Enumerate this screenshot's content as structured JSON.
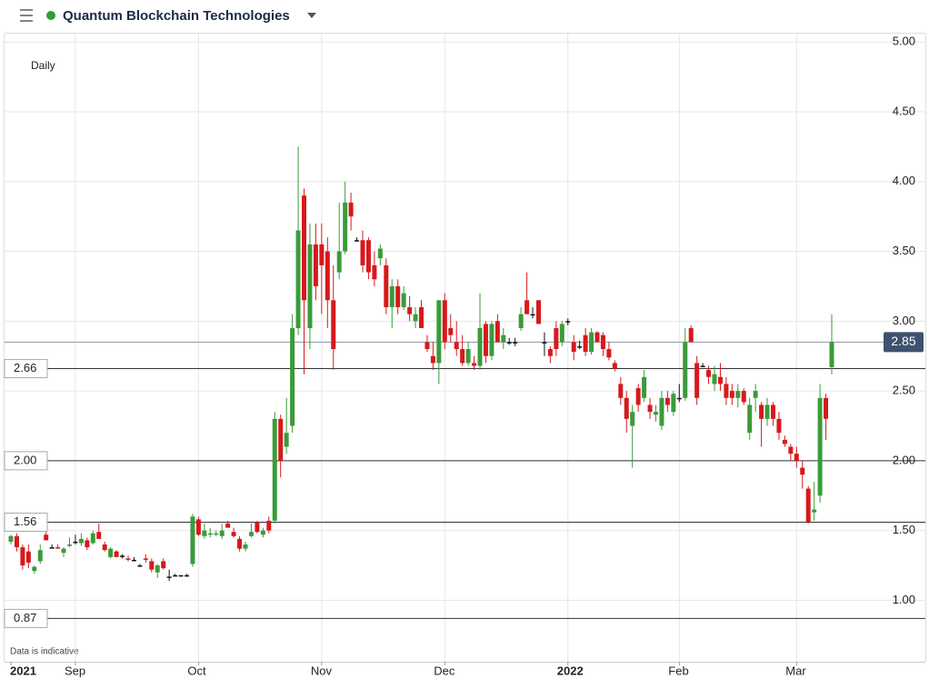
{
  "chart_data": {
    "type": "candlestick",
    "title": "Quantum Blockchain Technologies",
    "interval": "Daily",
    "footnote": "Data is indicative",
    "up_color": "#3a9b3a",
    "down_color": "#d7191c",
    "flat_color": "#111111",
    "categories": [
      "2021",
      null,
      null,
      null,
      null,
      null,
      null,
      null,
      null,
      null,
      null,
      "Sep",
      null,
      null,
      null,
      null,
      null,
      null,
      null,
      null,
      null,
      null,
      null,
      null,
      null,
      null,
      null,
      null,
      null,
      null,
      null,
      null,
      "Oct",
      null,
      null,
      null,
      null,
      null,
      null,
      null,
      null,
      null,
      null,
      null,
      null,
      null,
      null,
      null,
      null,
      null,
      null,
      null,
      null,
      "Nov",
      null,
      null,
      null,
      null,
      null,
      null,
      null,
      null,
      null,
      null,
      null,
      null,
      null,
      null,
      null,
      null,
      null,
      null,
      null,
      null,
      "Dec",
      null,
      null,
      null,
      null,
      null,
      null,
      null,
      null,
      null,
      null,
      null,
      null,
      null,
      null,
      null,
      null,
      null,
      null,
      null,
      null,
      "2022",
      null,
      null,
      null,
      null,
      null,
      null,
      null,
      null,
      null,
      null,
      null,
      null,
      null,
      null,
      null,
      null,
      null,
      null,
      "Feb",
      null,
      null,
      null,
      null,
      null,
      null,
      null,
      null,
      null,
      null,
      null,
      null,
      null,
      null,
      null,
      null,
      null,
      null,
      null,
      "Mar",
      null,
      null,
      null,
      null,
      null,
      null
    ],
    "open": [
      1.42,
      1.46,
      1.38,
      1.35,
      1.21,
      1.28,
      1.47,
      1.38,
      1.38,
      1.34,
      1.39,
      1.42,
      1.41,
      1.43,
      1.41,
      1.49,
      1.4,
      1.31,
      1.35,
      1.32,
      1.3,
      1.29,
      1.25,
      1.3,
      1.28,
      1.2,
      1.28,
      1.17,
      1.18,
      1.18,
      1.18,
      1.26,
      1.58,
      1.46,
      1.47,
      1.47,
      1.46,
      1.55,
      1.49,
      1.44,
      1.37,
      1.46,
      1.56,
      1.47,
      1.57,
      1.57,
      2.3,
      2.1,
      2.25,
      2.95,
      3.9,
      2.95,
      3.55,
      3.55,
      3.5,
      3.15,
      3.35,
      3.5,
      3.85,
      3.58,
      3.58,
      3.58,
      3.4,
      3.45,
      3.4,
      3.1,
      3.25,
      3.1,
      3.1,
      3.0,
      3.1,
      2.85,
      2.75,
      2.7,
      3.15,
      2.95,
      2.85,
      2.8,
      2.7,
      2.7,
      2.68,
      2.98,
      2.75,
      3.0,
      2.85,
      2.85,
      2.85,
      2.95,
      3.15,
      3.05,
      3.15,
      2.85,
      2.8,
      2.95,
      2.85,
      3.0,
      2.85,
      2.82,
      2.9,
      2.78,
      2.92,
      2.9,
      2.8,
      2.7,
      2.55,
      2.45,
      2.25,
      2.52,
      2.45,
      2.4,
      2.33,
      2.25,
      2.45,
      2.35,
      2.45,
      2.45,
      2.95,
      2.7,
      2.68,
      2.65,
      2.55,
      2.6,
      2.55,
      2.5,
      2.45,
      2.5,
      2.2,
      2.45,
      2.4,
      2.3,
      2.4,
      2.3,
      2.15,
      2.1,
      2.05,
      1.95,
      1.8,
      1.63,
      1.75,
      2.45,
      2.67
    ],
    "high": [
      1.47,
      1.48,
      1.4,
      1.4,
      1.25,
      1.4,
      1.49,
      1.4,
      1.4,
      1.38,
      1.45,
      1.47,
      1.48,
      1.45,
      1.5,
      1.55,
      1.42,
      1.38,
      1.36,
      1.33,
      1.32,
      1.31,
      1.26,
      1.33,
      1.3,
      1.26,
      1.3,
      1.22,
      1.19,
      1.18,
      1.19,
      1.62,
      1.6,
      1.55,
      1.52,
      1.5,
      1.55,
      1.57,
      1.52,
      1.46,
      1.42,
      1.55,
      1.57,
      1.52,
      1.6,
      2.35,
      2.33,
      2.45,
      3.05,
      4.25,
      3.95,
      3.7,
      3.7,
      3.7,
      3.6,
      3.4,
      3.85,
      4.0,
      3.92,
      3.6,
      3.65,
      3.6,
      3.5,
      3.55,
      3.45,
      3.3,
      3.3,
      3.25,
      3.18,
      3.1,
      3.15,
      2.9,
      2.85,
      3.15,
      3.2,
      3.05,
      3.0,
      2.9,
      2.85,
      2.75,
      3.2,
      3.0,
      3.0,
      3.05,
      2.95,
      2.88,
      2.88,
      3.1,
      3.35,
      3.1,
      3.15,
      2.92,
      2.82,
      3.0,
      3.0,
      3.02,
      2.9,
      2.86,
      2.95,
      2.95,
      2.93,
      2.92,
      2.85,
      2.72,
      2.6,
      2.5,
      2.4,
      2.55,
      2.65,
      2.45,
      2.4,
      2.5,
      2.5,
      2.5,
      2.55,
      2.95,
      2.97,
      2.75,
      2.7,
      2.68,
      2.68,
      2.7,
      2.6,
      2.55,
      2.55,
      2.52,
      2.45,
      2.55,
      2.42,
      2.45,
      2.42,
      2.35,
      2.18,
      2.12,
      2.1,
      2.0,
      1.82,
      1.85,
      2.55,
      2.48,
      3.05
    ],
    "low": [
      1.4,
      1.35,
      1.22,
      1.23,
      1.19,
      1.26,
      1.43,
      1.37,
      1.37,
      1.31,
      1.38,
      1.4,
      1.39,
      1.36,
      1.4,
      1.44,
      1.35,
      1.3,
      1.31,
      1.3,
      1.28,
      1.28,
      1.24,
      1.27,
      1.2,
      1.16,
      1.22,
      1.14,
      1.17,
      1.17,
      1.17,
      1.24,
      1.46,
      1.44,
      1.45,
      1.46,
      1.44,
      1.52,
      1.45,
      1.35,
      1.35,
      1.45,
      1.48,
      1.45,
      1.48,
      1.55,
      1.88,
      2.05,
      2.2,
      2.9,
      2.62,
      2.8,
      3.15,
      3.05,
      2.95,
      2.65,
      3.3,
      3.48,
      3.65,
      3.57,
      3.35,
      3.3,
      3.25,
      3.4,
      3.05,
      2.95,
      3.05,
      3.08,
      3.0,
      2.95,
      2.95,
      2.78,
      2.65,
      2.55,
      2.8,
      2.85,
      2.75,
      2.68,
      2.68,
      2.65,
      2.65,
      2.7,
      2.72,
      2.85,
      2.8,
      2.83,
      2.82,
      2.93,
      3.05,
      3.02,
      2.98,
      2.75,
      2.7,
      2.75,
      2.82,
      2.97,
      2.72,
      2.8,
      2.75,
      2.76,
      2.85,
      2.75,
      2.72,
      2.64,
      2.4,
      2.2,
      1.95,
      2.35,
      2.42,
      2.3,
      2.28,
      2.22,
      2.35,
      2.32,
      2.42,
      2.43,
      2.85,
      2.4,
      2.67,
      2.55,
      2.5,
      2.5,
      2.4,
      2.4,
      2.38,
      2.4,
      2.15,
      2.35,
      2.1,
      2.25,
      2.25,
      2.15,
      2.1,
      2.0,
      1.95,
      1.8,
      1.55,
      1.57,
      1.7,
      2.15,
      2.62
    ],
    "close": [
      1.46,
      1.38,
      1.25,
      1.27,
      1.24,
      1.36,
      1.43,
      1.38,
      1.37,
      1.37,
      1.4,
      1.42,
      1.44,
      1.38,
      1.48,
      1.44,
      1.36,
      1.37,
      1.31,
      1.32,
      1.29,
      1.29,
      1.25,
      1.29,
      1.22,
      1.25,
      1.23,
      1.17,
      1.18,
      1.18,
      1.18,
      1.6,
      1.47,
      1.5,
      1.48,
      1.48,
      1.5,
      1.52,
      1.46,
      1.37,
      1.4,
      1.49,
      1.49,
      1.5,
      1.5,
      2.3,
      2.0,
      2.2,
      2.95,
      3.65,
      3.15,
      3.55,
      3.25,
      3.4,
      3.15,
      2.8,
      3.5,
      3.85,
      3.75,
      3.58,
      3.4,
      3.35,
      3.3,
      3.52,
      3.1,
      3.25,
      3.1,
      3.2,
      3.05,
      3.05,
      2.95,
      2.8,
      2.7,
      3.15,
      2.85,
      2.9,
      2.8,
      2.7,
      2.8,
      2.68,
      2.95,
      2.75,
      2.98,
      2.85,
      2.9,
      2.85,
      2.85,
      3.05,
      3.05,
      3.05,
      2.98,
      2.85,
      2.75,
      2.8,
      2.98,
      3.0,
      2.78,
      2.82,
      2.78,
      2.92,
      2.85,
      2.8,
      2.74,
      2.66,
      2.45,
      2.3,
      2.35,
      2.4,
      2.6,
      2.35,
      2.35,
      2.45,
      2.4,
      2.48,
      2.45,
      2.85,
      2.85,
      2.45,
      2.68,
      2.6,
      2.62,
      2.55,
      2.45,
      2.45,
      2.5,
      2.42,
      2.4,
      2.5,
      2.3,
      2.4,
      2.3,
      2.2,
      2.12,
      2.05,
      2.0,
      1.9,
      1.56,
      1.65,
      2.45,
      2.3,
      2.85
    ],
    "ylim": [
      0.56,
      5.06
    ],
    "yticks": [
      {
        "value": 1,
        "label": "1.00"
      },
      {
        "value": 1.5,
        "label": "1.50"
      },
      {
        "value": 2,
        "label": "2.00"
      },
      {
        "value": 2.5,
        "label": "2.50"
      },
      {
        "value": 3,
        "label": "3.00"
      },
      {
        "value": 3.5,
        "label": "3.50"
      },
      {
        "value": 4,
        "label": "4.00"
      },
      {
        "value": 4.5,
        "label": "4.50"
      },
      {
        "value": 5,
        "label": "5.00"
      }
    ],
    "grid": true,
    "levels": [
      {
        "value": 2.66,
        "label": "2.66"
      },
      {
        "value": 2,
        "label": "2.00"
      },
      {
        "value": 1.56,
        "label": "1.56"
      },
      {
        "value": 0.87,
        "label": "0.87"
      }
    ],
    "last_price": {
      "value": 2.85,
      "label": "2.85"
    }
  }
}
